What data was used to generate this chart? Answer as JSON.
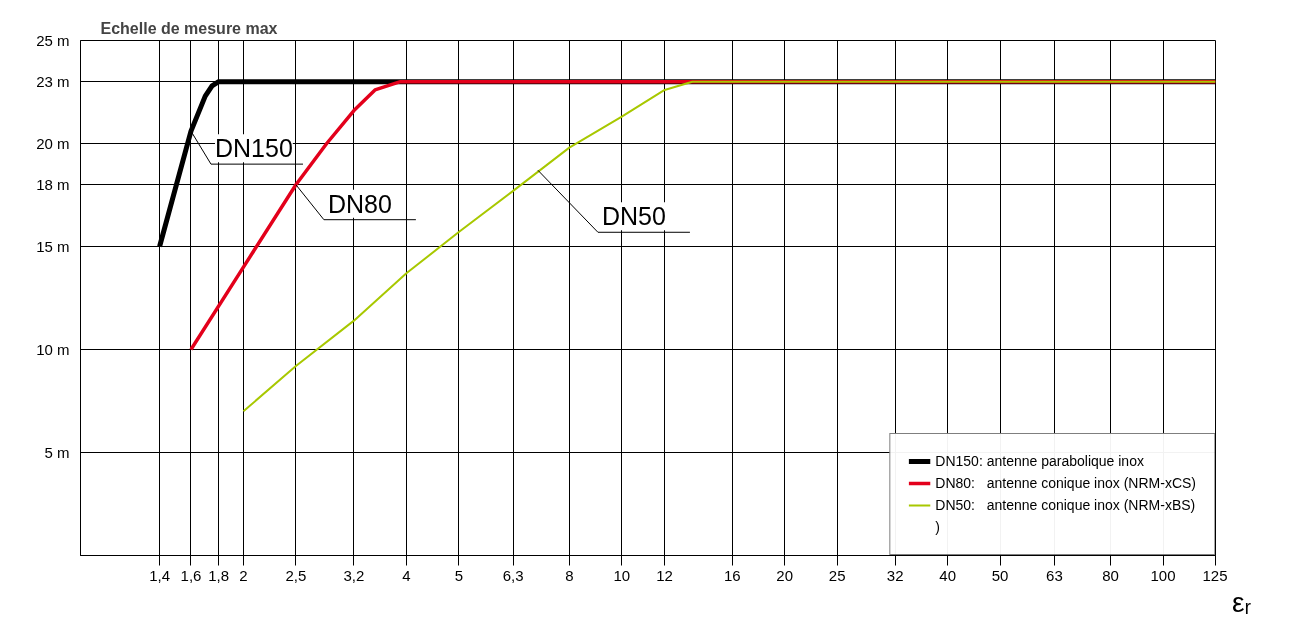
{
  "chart_data": {
    "type": "line",
    "title": "Echelle de mesure max",
    "xlabel": "εᵣ",
    "log": "x",
    "xlim": [
      1,
      125
    ],
    "ylim": [
      0,
      25
    ],
    "xticks": [
      {
        "value": 1.4,
        "label": "1,4"
      },
      {
        "value": 1.6,
        "label": "1,6"
      },
      {
        "value": 1.8,
        "label": "1,8"
      },
      2,
      {
        "value": 2.5,
        "label": "2,5"
      },
      {
        "value": 3.2,
        "label": "3,2"
      },
      4,
      5,
      {
        "value": 6.3,
        "label": "6,3"
      },
      8,
      10,
      12,
      16,
      20,
      25,
      32,
      40,
      50,
      63,
      80,
      100,
      125
    ],
    "yticks": [
      {
        "value": 5,
        "label": "5 m"
      },
      {
        "value": 10,
        "label": "10 m"
      },
      {
        "value": 15,
        "label": "15 m"
      },
      {
        "value": 18,
        "label": "18 m"
      },
      {
        "value": 20,
        "label": "20 m"
      },
      {
        "value": 23,
        "label": "23 m"
      },
      {
        "value": 25,
        "label": "25 m"
      }
    ],
    "grid": true,
    "legend": "bottom right",
    "marker": "none",
    "line_style": "solid",
    "series": [
      {
        "name": "DN150: antenne parabolique inox",
        "color": "#000000",
        "x": [
          1.4,
          1.6,
          1.7,
          1.75,
          1.8,
          125
        ],
        "values": [
          15,
          20.6,
          22.3,
          22.8,
          23,
          23
        ]
      },
      {
        "name": "DN80:   antenne conique inox (NRM-xCS)",
        "color": "#e3001b",
        "x": [
          1.6,
          2,
          2.5,
          2.85,
          3.2,
          3.5,
          3.9,
          125
        ],
        "values": [
          10,
          14,
          18,
          20,
          21.6,
          22.6,
          23,
          23
        ]
      },
      {
        "name": "DN50:   antenne conique inox (NRM-xBS)",
        "color": "#a8c800",
        "x": [
          2,
          2.5,
          3.2,
          4,
          5,
          6.3,
          8,
          10,
          12,
          13.5,
          125
        ],
        "values": [
          7,
          9.2,
          11.4,
          13.7,
          15.7,
          17.7,
          19.8,
          21.3,
          22.6,
          23,
          23
        ]
      }
    ],
    "annotations": [
      {
        "text": "DN150",
        "x": 1.6,
        "y": 20.6
      },
      {
        "text": "DN80",
        "x": 2.5,
        "y": 18
      },
      {
        "text": "DN50",
        "x": 7,
        "y": 18.7
      },
      ")"
    ]
  }
}
